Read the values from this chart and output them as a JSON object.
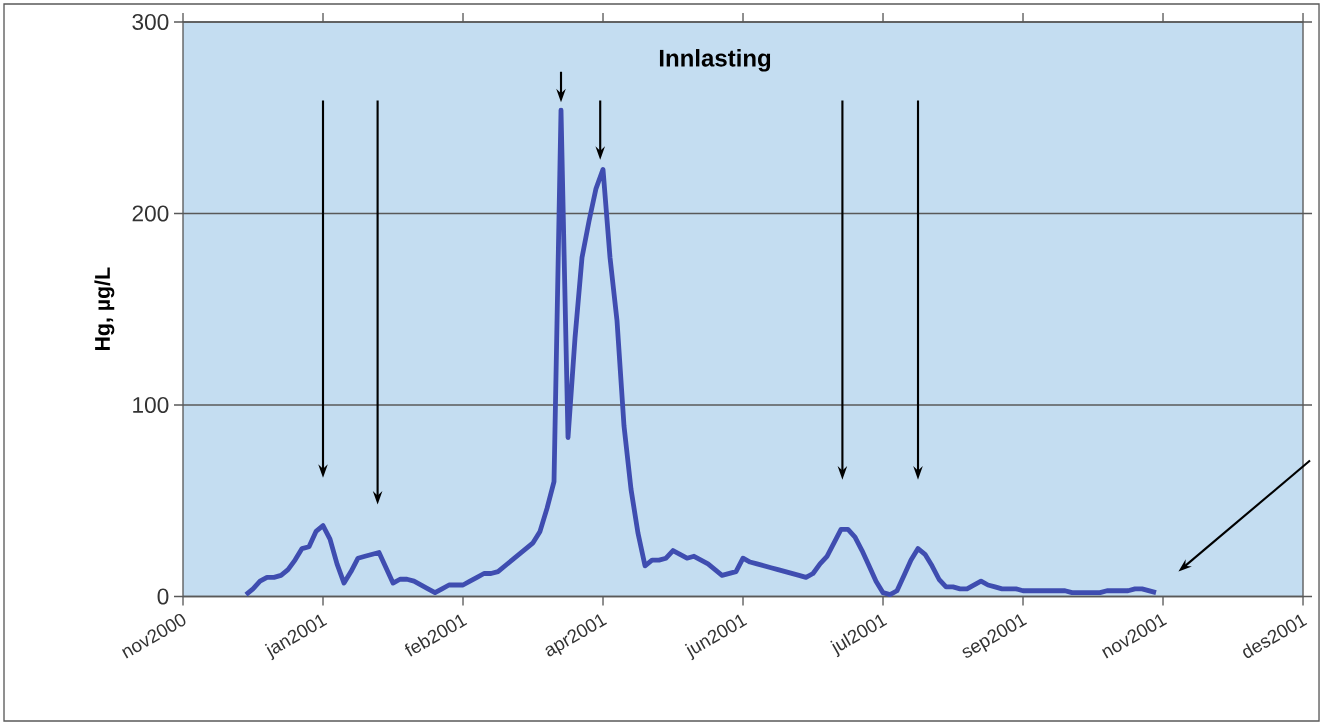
{
  "chart_data": {
    "type": "line",
    "ylabel": "Hg, µg/L",
    "annotations": [
      "Innlasting"
    ],
    "color": "#3f4db0",
    "grid": "y",
    "ylim": [
      0,
      300
    ],
    "yticks": [
      0,
      100,
      200,
      300
    ],
    "categories": [
      "nov2000",
      null,
      null,
      null,
      null,
      null,
      null,
      null,
      null,
      null,
      null,
      null,
      null,
      null,
      null,
      null,
      null,
      null,
      null,
      null,
      "jan2001",
      null,
      null,
      null,
      null,
      null,
      null,
      null,
      null,
      null,
      null,
      null,
      null,
      null,
      null,
      null,
      null,
      null,
      null,
      null,
      "feb2001",
      null,
      null,
      null,
      null,
      null,
      null,
      null,
      null,
      null,
      null,
      null,
      null,
      null,
      null,
      null,
      null,
      null,
      null,
      null,
      "apr2001",
      null,
      null,
      null,
      null,
      null,
      null,
      null,
      null,
      null,
      null,
      null,
      null,
      null,
      null,
      null,
      null,
      null,
      null,
      null,
      "jun2001",
      null,
      null,
      null,
      null,
      null,
      null,
      null,
      null,
      null,
      null,
      null,
      null,
      null,
      null,
      null,
      null,
      null,
      null,
      null,
      "jul2001",
      null,
      null,
      null,
      null,
      null,
      null,
      null,
      null,
      null,
      null,
      null,
      null,
      null,
      null,
      null,
      null,
      null,
      null,
      null,
      "sep2001",
      null,
      null,
      null,
      null,
      null,
      null,
      null,
      null,
      null,
      null,
      null,
      null,
      null,
      null,
      null,
      null,
      null,
      null,
      null,
      "nov2001",
      null,
      null,
      null,
      null,
      null,
      null,
      null,
      null,
      null,
      null,
      null,
      null,
      null,
      null,
      null,
      null,
      null,
      null,
      null,
      "des2001"
    ],
    "values": [
      null,
      null,
      null,
      null,
      null,
      null,
      null,
      null,
      null,
      1,
      4,
      8,
      10,
      10,
      11,
      14,
      19,
      25,
      26,
      34,
      37,
      30,
      17,
      7,
      13,
      20,
      21,
      22,
      23,
      15,
      7,
      9,
      9,
      8,
      6,
      4,
      2,
      4,
      6,
      6,
      6,
      8,
      10,
      12,
      12,
      13,
      16,
      19,
      22,
      25,
      28,
      34,
      46,
      60,
      254,
      83,
      135,
      177,
      196,
      213,
      223,
      177,
      144,
      89,
      56,
      33,
      16,
      19,
      19,
      20,
      24,
      22,
      20,
      21,
      19,
      17,
      14,
      11,
      12,
      13,
      20,
      18,
      17,
      16,
      15,
      14,
      13,
      12,
      11,
      10,
      12,
      17,
      21,
      28,
      35,
      35,
      31,
      24,
      16,
      8,
      2,
      1,
      3,
      11,
      19,
      25,
      22,
      16,
      9,
      5,
      5,
      4,
      4,
      6,
      8,
      6,
      5,
      4,
      4,
      4,
      3,
      3,
      3,
      3,
      3,
      3,
      3,
      2,
      2,
      2,
      2,
      2,
      3,
      3,
      3,
      3,
      4,
      4,
      3,
      2,
      null,
      null,
      null,
      null,
      null,
      null,
      null,
      null,
      null,
      null,
      null,
      null,
      null,
      null,
      null,
      null,
      null,
      null,
      null,
      null,
      null
    ]
  }
}
